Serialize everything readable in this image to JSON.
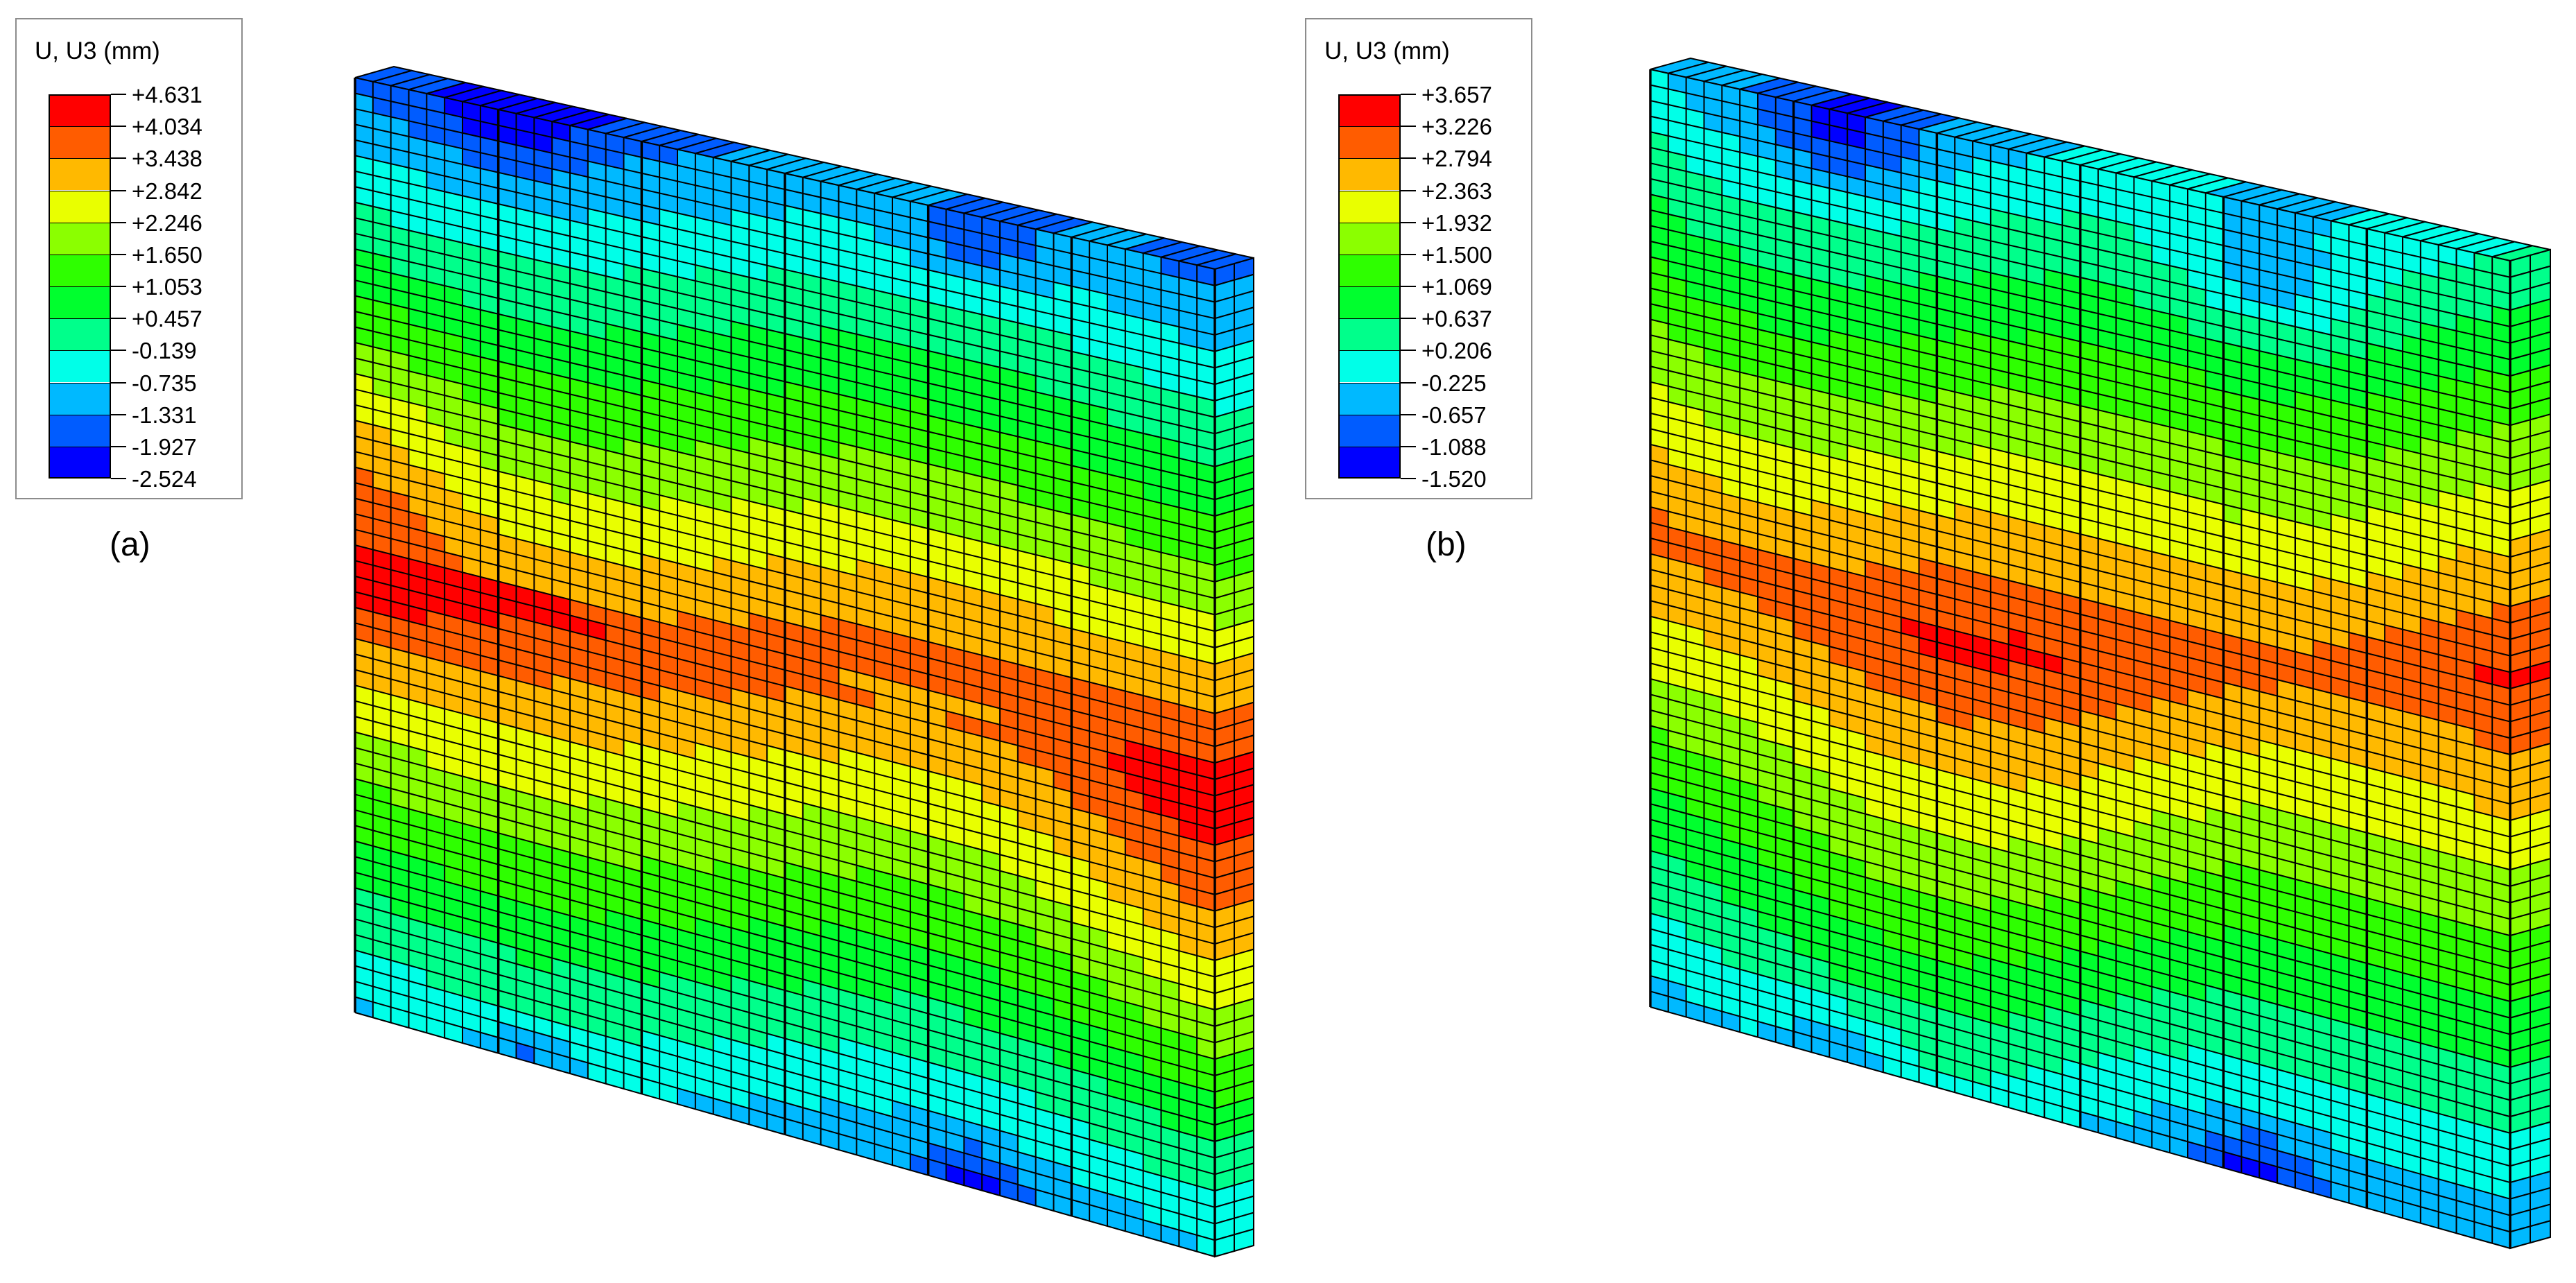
{
  "panels": [
    {
      "id": "a",
      "label": "(a)",
      "legend": {
        "title": "U, U3 (mm)",
        "values": [
          "+4.631",
          "+4.034",
          "+3.438",
          "+2.842",
          "+2.246",
          "+1.650",
          "+1.053",
          "+0.457",
          "-0.139",
          "-0.735",
          "-1.331",
          "-1.927",
          "-2.524"
        ]
      },
      "contour": "center-band"
    },
    {
      "id": "b",
      "label": "(b)",
      "legend": {
        "title": "U, U3 (mm)",
        "values": [
          "+3.657",
          "+3.226",
          "+2.794",
          "+2.363",
          "+1.932",
          "+1.500",
          "+1.069",
          "+0.637",
          "+0.206",
          "-0.225",
          "-0.657",
          "-1.088",
          "-1.520"
        ]
      },
      "contour": "wavy-band"
    }
  ],
  "colors": {
    "contour_scale": [
      "#ff0000",
      "#ff5c00",
      "#ffb900",
      "#e9ff00",
      "#8bff00",
      "#2eff00",
      "#00ff2e",
      "#00ff8b",
      "#00ffe8",
      "#00b9ff",
      "#005cff",
      "#0000ff"
    ],
    "mesh_lines": "#000000"
  }
}
